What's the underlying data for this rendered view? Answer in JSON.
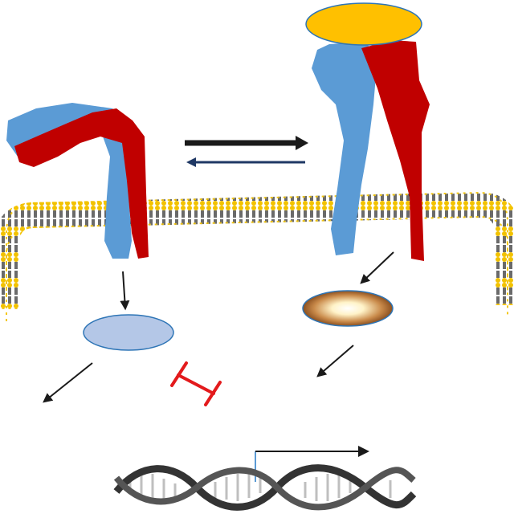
{
  "diagram": {
    "colors": {
      "background": "#ffffff",
      "subunit_blue": "#5b9bd5",
      "subunit_red": "#c00000",
      "ligand": "#ffc000",
      "ligand_outline": "#2e75b6",
      "effector_inactive": "#b4c7e7",
      "effector_active_outer": "#b87333",
      "effector_active_inner": "#fff8dc",
      "lipid_head": "#f2c200",
      "lipid_tail": "#1a1a1a",
      "arrow": "#1a1a1a",
      "arrow_reverse": "#1f3864",
      "inhibition": "#e31a1c",
      "dna_strand": "#333333",
      "dna_rung": "#d9d9d9",
      "transcription_start": "#5b9bd5"
    },
    "icons": {
      "equilibrium": "equilibrium-arrows-icon",
      "inhibition": "inhibition-bar-icon",
      "transcription": "transcription-start-arrow-icon",
      "dna": "dna-double-helix-icon"
    }
  }
}
